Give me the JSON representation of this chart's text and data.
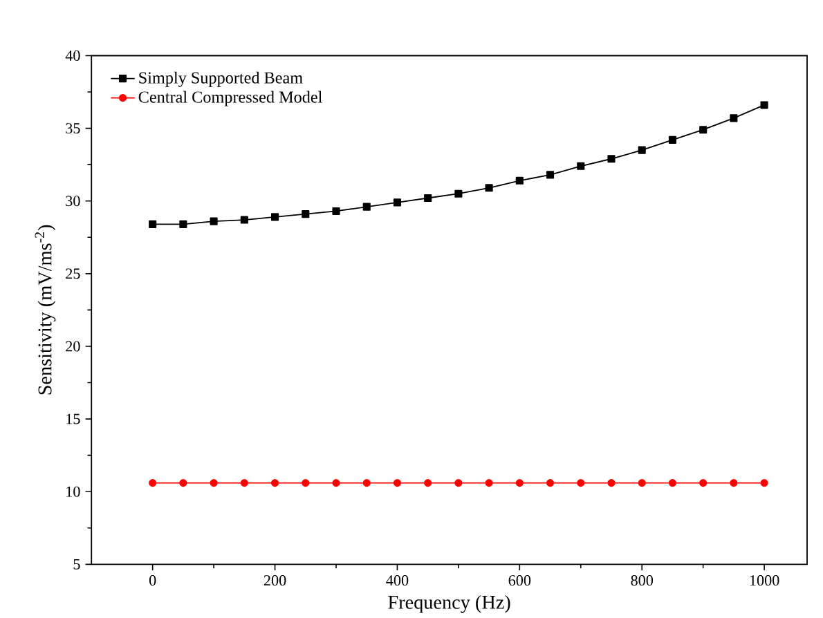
{
  "chart_data": {
    "type": "line",
    "xlabel": "Frequency (Hz)",
    "ylabel": "Sensitivity (mV/ms$^{-2}$)",
    "x": [
      0,
      50,
      100,
      150,
      200,
      250,
      300,
      350,
      400,
      450,
      500,
      550,
      600,
      650,
      700,
      750,
      800,
      850,
      900,
      950,
      1000
    ],
    "series": [
      {
        "name": "Simply Supported Beam",
        "color": "#000000",
        "marker": "square",
        "values": [
          28.4,
          28.4,
          28.6,
          28.7,
          28.9,
          29.1,
          29.3,
          29.6,
          29.9,
          30.2,
          30.5,
          30.9,
          31.4,
          31.8,
          32.4,
          32.9,
          33.5,
          34.2,
          34.9,
          35.7,
          36.6
        ]
      },
      {
        "name": "Central Compressed Model",
        "color": "#ff0000",
        "marker": "circle",
        "values": [
          10.6,
          10.6,
          10.6,
          10.6,
          10.6,
          10.6,
          10.6,
          10.6,
          10.6,
          10.6,
          10.6,
          10.6,
          10.6,
          10.6,
          10.6,
          10.6,
          10.6,
          10.6,
          10.6,
          10.6,
          10.6
        ]
      }
    ],
    "xlim": [
      -100,
      1070
    ],
    "ylim": [
      5,
      40
    ],
    "xticks": [
      0,
      200,
      400,
      600,
      800,
      1000
    ],
    "yticks": [
      5,
      10,
      15,
      20,
      25,
      30,
      35,
      40
    ],
    "grid": false,
    "legend": "top left",
    "line_style": "solid"
  }
}
